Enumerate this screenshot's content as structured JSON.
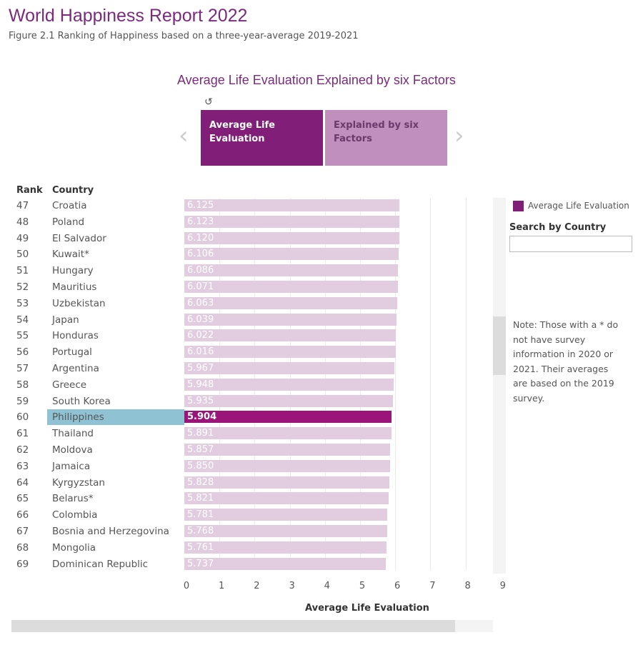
{
  "header": {
    "title": "World Happiness Report 2022",
    "subtitle": "Figure 2.1 Ranking of Happiness based on a three-year-average 2019-2021"
  },
  "viz": {
    "title": "Average Life Evaluation Explained by six Factors",
    "reset_icon": "↺",
    "tabs": [
      {
        "label": "Average Life Evaluation",
        "active": true
      },
      {
        "label": "Explained by six Factors",
        "active": false
      }
    ],
    "prev_icon": "‹",
    "next_icon": "›"
  },
  "table": {
    "rank_header": "Rank",
    "country_header": "Country"
  },
  "colors": {
    "bar": "#e2cce0",
    "selected_bar": "#9a1479",
    "highlight": "#8fc3d3",
    "accent": "#811e77"
  },
  "chart_data": {
    "type": "bar",
    "orientation": "horizontal",
    "xlabel": "Average Life Evaluation",
    "xlim": [
      0,
      9
    ],
    "xticks": [
      "0",
      "1",
      "2",
      "3",
      "4",
      "5",
      "6",
      "7",
      "8",
      "9"
    ],
    "grid": true,
    "selected": "Philippines",
    "rows": [
      {
        "rank": "47",
        "country": "Croatia",
        "value": 6.125
      },
      {
        "rank": "48",
        "country": "Poland",
        "value": 6.123
      },
      {
        "rank": "49",
        "country": "El Salvador",
        "value": 6.12
      },
      {
        "rank": "50",
        "country": "Kuwait*",
        "value": 6.106
      },
      {
        "rank": "51",
        "country": "Hungary",
        "value": 6.086
      },
      {
        "rank": "52",
        "country": "Mauritius",
        "value": 6.071
      },
      {
        "rank": "53",
        "country": "Uzbekistan",
        "value": 6.063
      },
      {
        "rank": "54",
        "country": "Japan",
        "value": 6.039
      },
      {
        "rank": "55",
        "country": "Honduras",
        "value": 6.022
      },
      {
        "rank": "56",
        "country": "Portugal",
        "value": 6.016
      },
      {
        "rank": "57",
        "country": "Argentina",
        "value": 5.967
      },
      {
        "rank": "58",
        "country": "Greece",
        "value": 5.948
      },
      {
        "rank": "59",
        "country": "South Korea",
        "value": 5.935
      },
      {
        "rank": "60",
        "country": "Philippines",
        "value": 5.904
      },
      {
        "rank": "61",
        "country": "Thailand",
        "value": 5.891
      },
      {
        "rank": "62",
        "country": "Moldova",
        "value": 5.857
      },
      {
        "rank": "63",
        "country": "Jamaica",
        "value": 5.85
      },
      {
        "rank": "64",
        "country": "Kyrgyzstan",
        "value": 5.828
      },
      {
        "rank": "65",
        "country": "Belarus*",
        "value": 5.821
      },
      {
        "rank": "66",
        "country": "Colombia",
        "value": 5.781
      },
      {
        "rank": "67",
        "country": "Bosnia and Herzegovina",
        "value": 5.768
      },
      {
        "rank": "68",
        "country": "Mongolia",
        "value": 5.761
      },
      {
        "rank": "69",
        "country": "Dominican Republic",
        "value": 5.737
      }
    ]
  },
  "legend": {
    "label": "Average Life Evaluation"
  },
  "search": {
    "label": "Search by Country",
    "value": ""
  },
  "note": "Note: Those with a * do not have survey information in 2020 or 2021. Their averages are based on the 2019 survey."
}
